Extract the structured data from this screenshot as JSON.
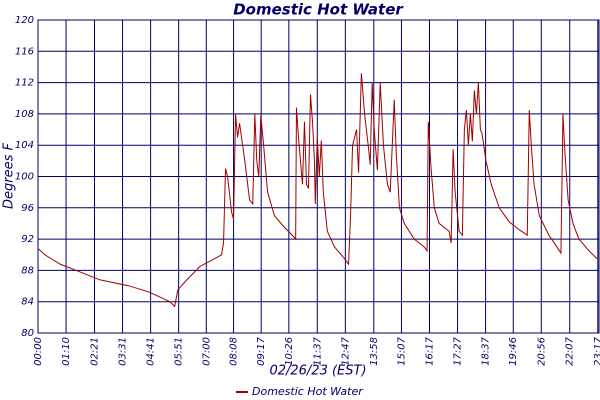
{
  "chart_data": {
    "type": "line",
    "title": "Domestic Hot Water",
    "x_label": "02/26/23 (EST)",
    "y_label": "Degrees F",
    "x": [
      0,
      17,
      55,
      105,
      154,
      229,
      279,
      329,
      341,
      349,
      366,
      404,
      441,
      458,
      463,
      468,
      473,
      483,
      488,
      493,
      498,
      503,
      516,
      528,
      536,
      541,
      546,
      551,
      556,
      563,
      573,
      590,
      615,
      638,
      643,
      645,
      650,
      660,
      665,
      670,
      675,
      680,
      685,
      690,
      692,
      697,
      702,
      707,
      712,
      722,
      740,
      765,
      775,
      780,
      785,
      795,
      800,
      807,
      815,
      824,
      829,
      834,
      839,
      847,
      854,
      862,
      872,
      879,
      889,
      894,
      902,
      914,
      939,
      964,
      971,
      974,
      981,
      989,
      1001,
      1026,
      1031,
      1036,
      1041,
      1051,
      1059,
      1064,
      1069,
      1074,
      1079,
      1084,
      1089,
      1094,
      1099,
      1104,
      1108,
      1118,
      1131,
      1151,
      1176,
      1201,
      1221,
      1226,
      1231,
      1238,
      1251,
      1275,
      1295,
      1305,
      1310,
      1315,
      1323,
      1335,
      1350,
      1375,
      1395
    ],
    "series": [
      {
        "name": "Domestic Hot Water",
        "color": "#a00000",
        "values": [
          90.8,
          90,
          88.8,
          87.8,
          86.8,
          86,
          85.2,
          84,
          83.4,
          85.5,
          86.5,
          88.5,
          89.5,
          90,
          91.5,
          101,
          100,
          95.5,
          94.5,
          108,
          105,
          106.8,
          102,
          97,
          96.5,
          108,
          102,
          100,
          107.8,
          104,
          98,
          95,
          93.5,
          92.3,
          92,
          108.8,
          105,
          99,
          107,
          99,
          98.5,
          110.5,
          107,
          102,
          96.5,
          105,
          100,
          104.6,
          98,
          93,
          91,
          89.5,
          88.8,
          95,
          104,
          106,
          100.5,
          113.2,
          108,
          104,
          101.5,
          112,
          106,
          100.8,
          112,
          104,
          99,
          98,
          109.8,
          103,
          96,
          94,
          92,
          91,
          90.5,
          107,
          101,
          96,
          94,
          93,
          91.5,
          103.5,
          98,
          93,
          92.5,
          106,
          108.5,
          104,
          108,
          104.5,
          111,
          108,
          112,
          106,
          105.5,
          102,
          99,
          96,
          94.2,
          93.2,
          92.5,
          108.5,
          104,
          99,
          95,
          92.5,
          91,
          90.2,
          108,
          103,
          97,
          94,
          92,
          90.5,
          89.5
        ]
      }
    ],
    "xlim": [
      0,
      1400
    ],
    "xticks": [
      {
        "value": 0,
        "label": "00:00"
      },
      {
        "value": 70,
        "label": "01:10"
      },
      {
        "value": 141,
        "label": "02:21"
      },
      {
        "value": 211,
        "label": "03:31"
      },
      {
        "value": 281,
        "label": "04:41"
      },
      {
        "value": 351,
        "label": "05:51"
      },
      {
        "value": 420,
        "label": "07:00"
      },
      {
        "value": 488,
        "label": "08:08"
      },
      {
        "value": 557,
        "label": "09:17"
      },
      {
        "value": 626,
        "label": "10:26"
      },
      {
        "value": 697,
        "label": "11:37"
      },
      {
        "value": 767,
        "label": "12:47"
      },
      {
        "value": 838,
        "label": "13:58"
      },
      {
        "value": 907,
        "label": "15:07"
      },
      {
        "value": 977,
        "label": "16:17"
      },
      {
        "value": 1047,
        "label": "17:27"
      },
      {
        "value": 1117,
        "label": "18:37"
      },
      {
        "value": 1186,
        "label": "19:46"
      },
      {
        "value": 1256,
        "label": "20:56"
      },
      {
        "value": 1327,
        "label": "22:07"
      },
      {
        "value": 1397,
        "label": "23:17"
      }
    ],
    "ylim": [
      80,
      120
    ],
    "yticks": [
      80,
      84,
      88,
      92,
      96,
      100,
      104,
      108,
      112,
      116,
      120
    ],
    "grid": true,
    "legend": "bottom"
  }
}
